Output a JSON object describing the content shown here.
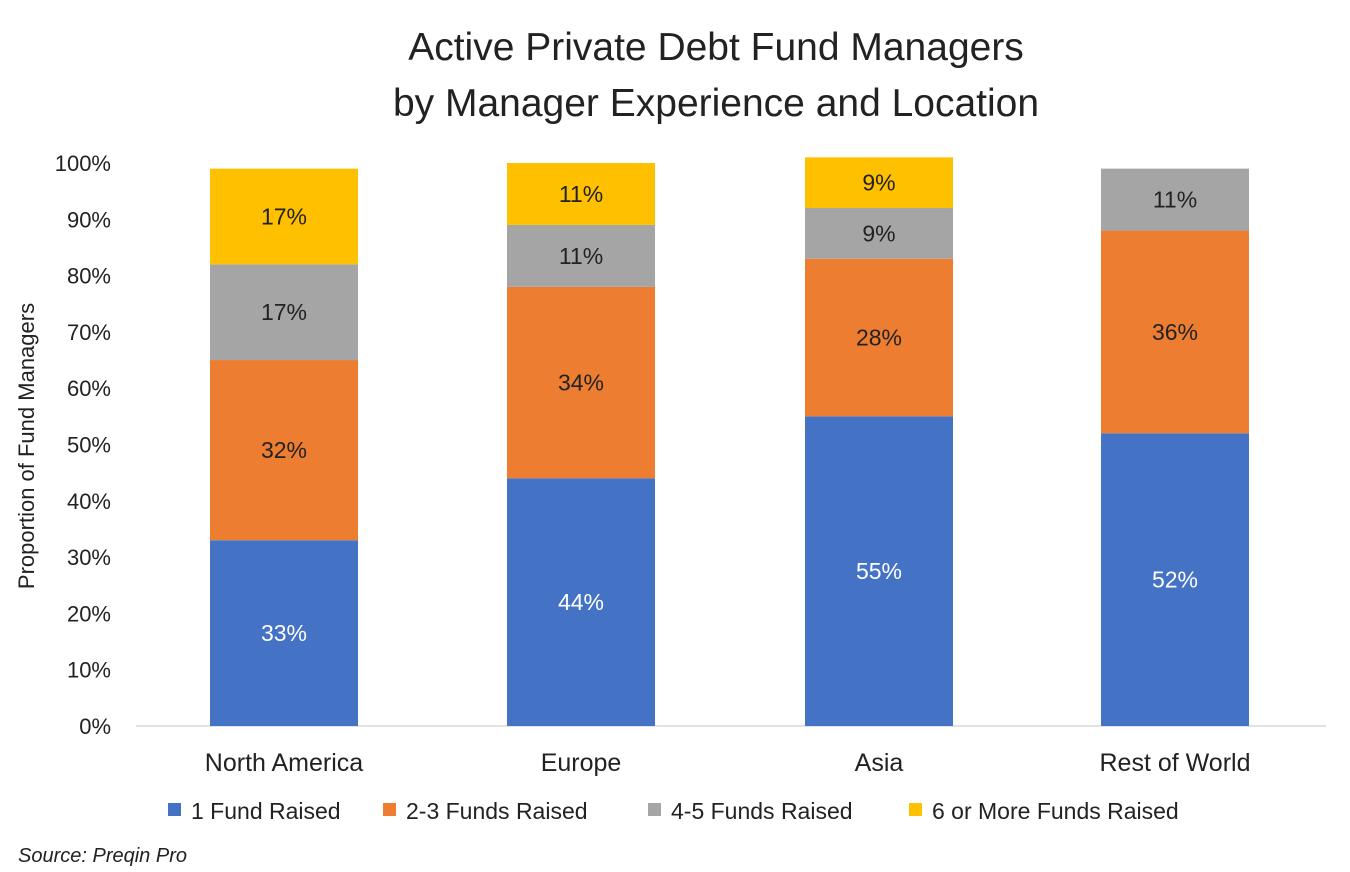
{
  "chart_data": {
    "type": "bar",
    "stacked": true,
    "title": [
      "Active Private Debt Fund Managers",
      "by Manager Experience and Location"
    ],
    "ylabel": "Proportion of Fund Managers",
    "xlabel": "",
    "ylim": [
      0,
      100
    ],
    "yticks": [
      "0%",
      "10%",
      "20%",
      "30%",
      "40%",
      "50%",
      "60%",
      "70%",
      "80%",
      "90%",
      "100%"
    ],
    "categories": [
      "North America",
      "Europe",
      "Asia",
      "Rest of World"
    ],
    "series": [
      {
        "name": "1 Fund Raised",
        "color": "#4472C4",
        "label_color": "#FFFFFF",
        "values": [
          33,
          44,
          55,
          52
        ],
        "labels": [
          "33%",
          "44%",
          "55%",
          "52%"
        ]
      },
      {
        "name": "2-3 Funds Raised",
        "color": "#ED7D31",
        "label_color": "#222222",
        "values": [
          32,
          34,
          28,
          36
        ],
        "labels": [
          "32%",
          "34%",
          "28%",
          "36%"
        ]
      },
      {
        "name": "4-5 Funds Raised",
        "color": "#A5A5A5",
        "label_color": "#222222",
        "values": [
          17,
          11,
          9,
          11
        ],
        "labels": [
          "17%",
          "11%",
          "9%",
          "11%"
        ]
      },
      {
        "name": "6 or More Funds Raised",
        "color": "#FFC000",
        "label_color": "#222222",
        "values": [
          17,
          11,
          9,
          0
        ],
        "labels": [
          "17%",
          "11%",
          "9%",
          ""
        ]
      }
    ],
    "legend": "bottom",
    "grid": false,
    "source": "Source: Preqin Pro"
  }
}
